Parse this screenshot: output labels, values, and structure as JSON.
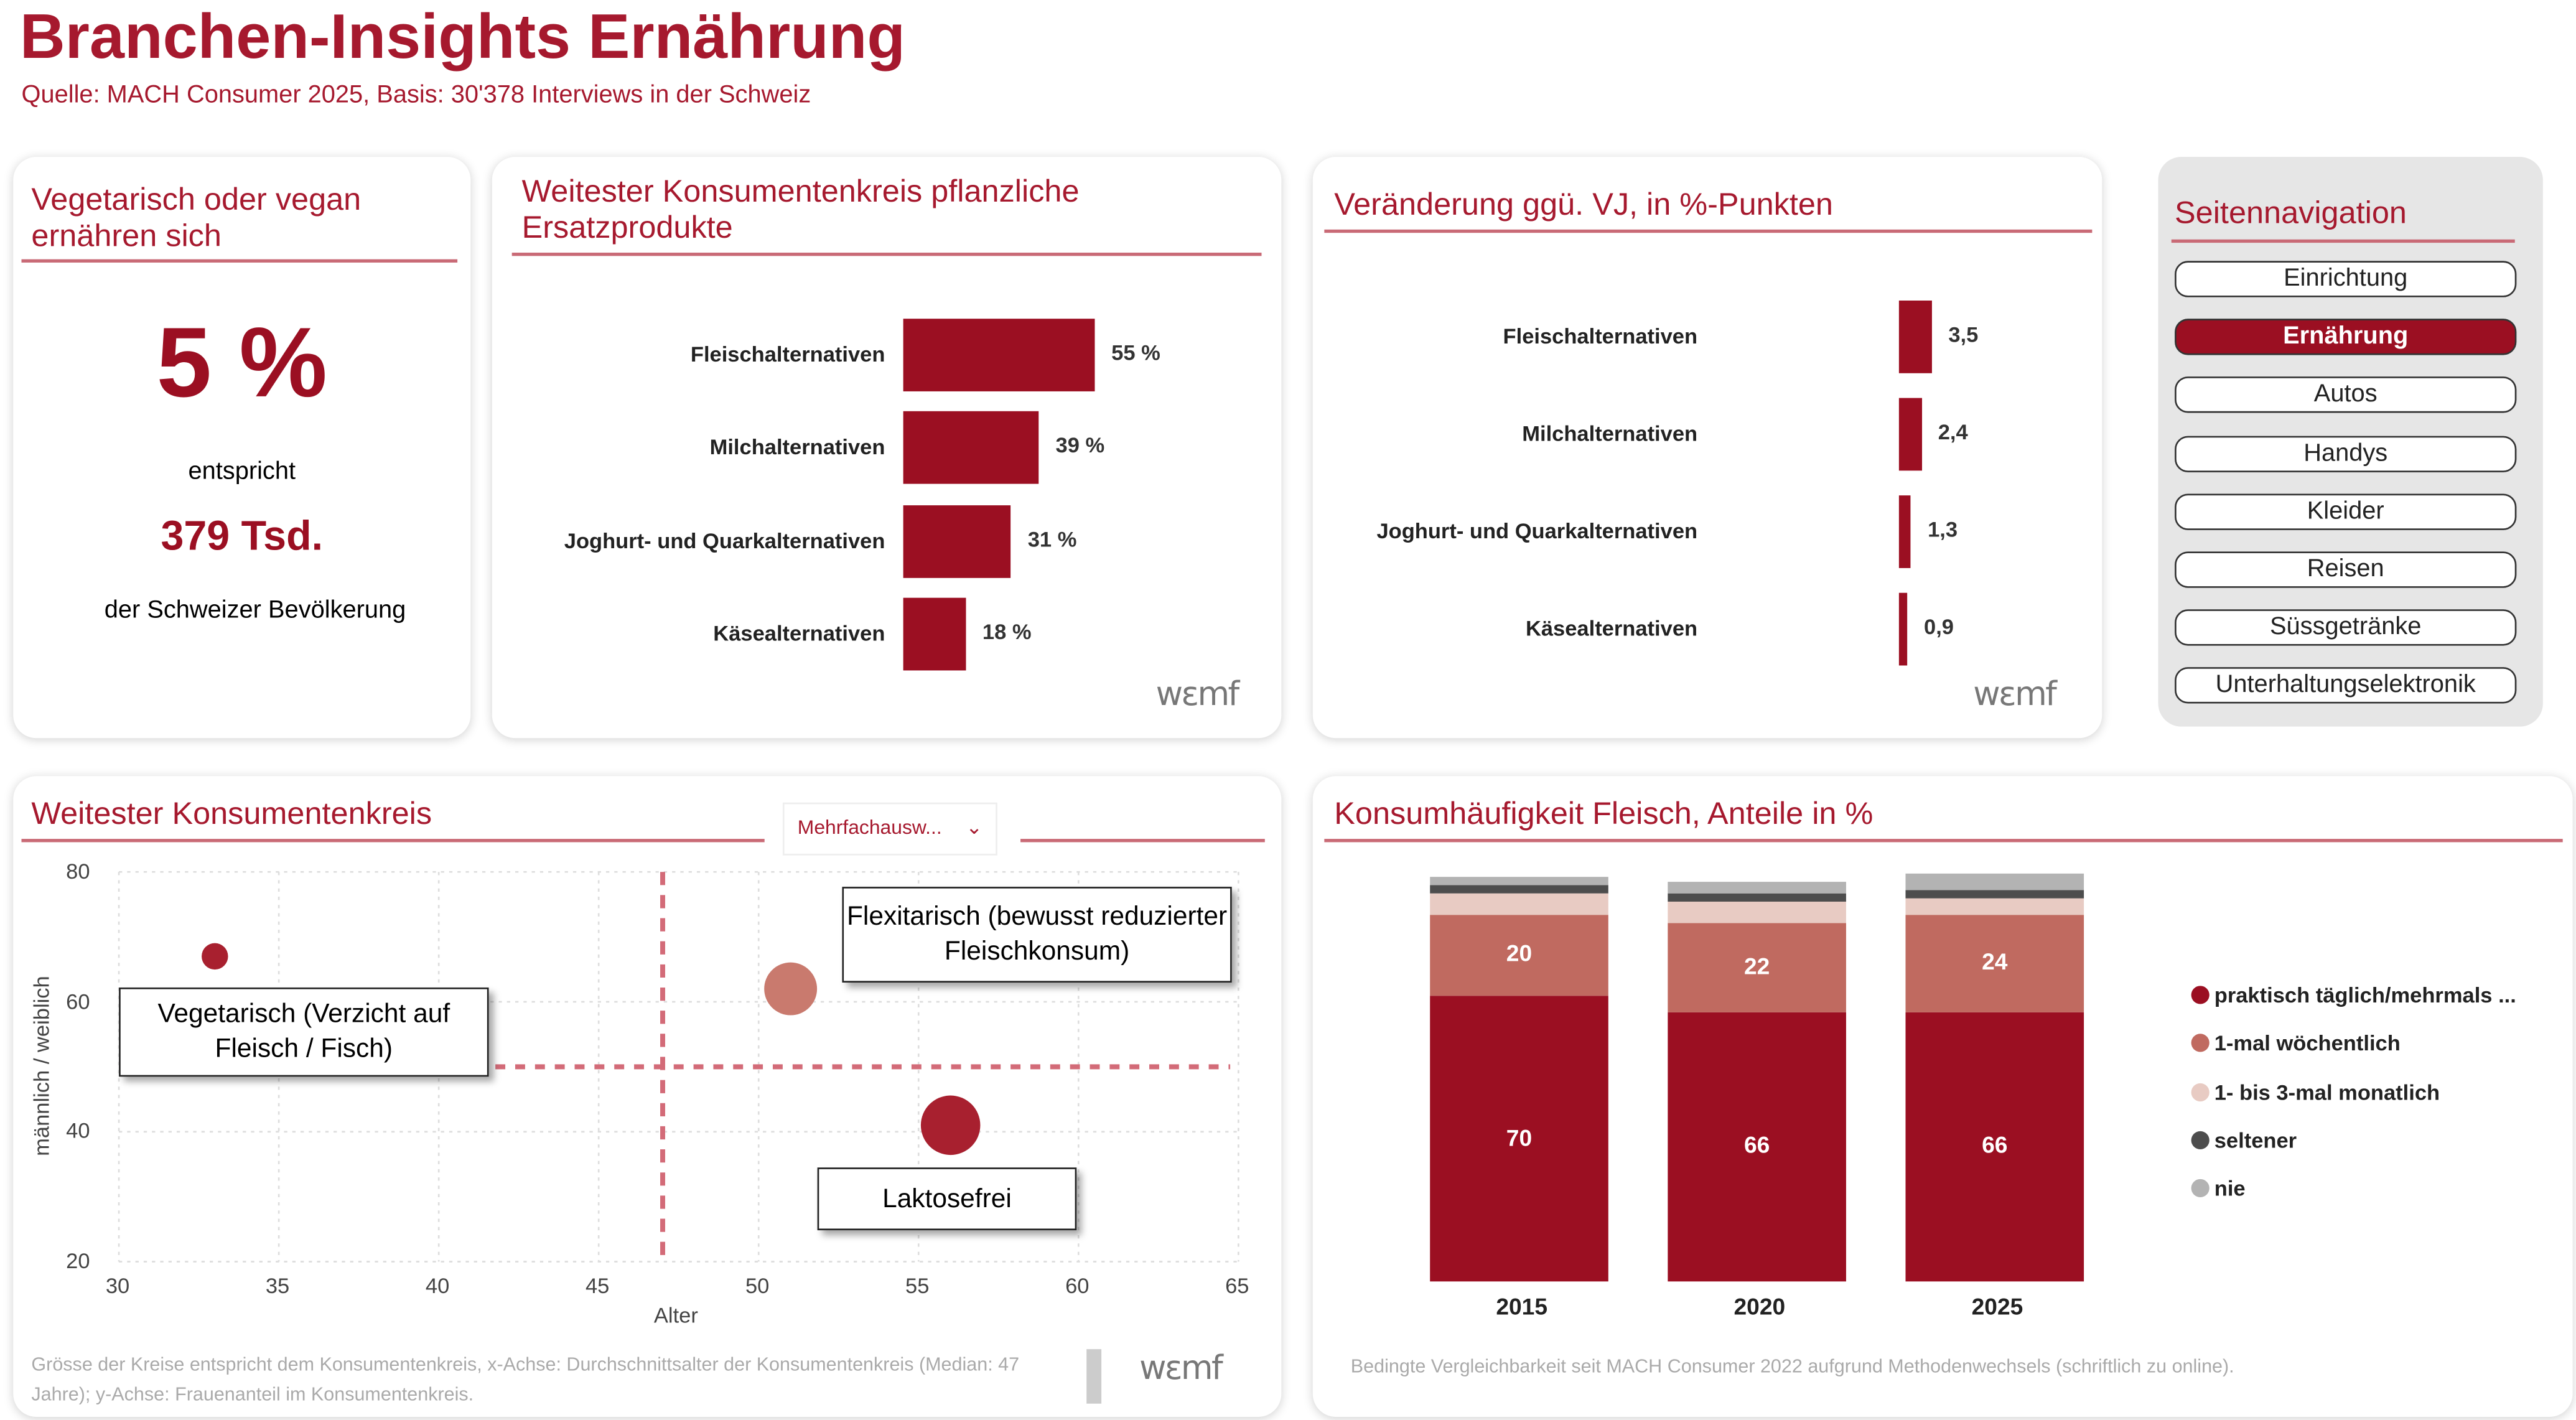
{
  "header": {
    "title": "Branchen-Insights Ernährung",
    "subtitle": "Quelle: MACH Consumer 2025, Basis: 30'378 Interviews in der Schweiz"
  },
  "kpi": {
    "title": "Vegetarisch oder vegan ernähren sich",
    "percent": "5 %",
    "entspricht": "entspricht",
    "count": "379 Tsd.",
    "basis": "der Schweizer Bevölkerung"
  },
  "brand": {
    "logo": "wemf",
    "accent": "#9b0f22"
  },
  "chart_data": [
    {
      "type": "bar",
      "orientation": "horizontal",
      "title": "Weitester Konsumentenkreis pflanzliche Ersatzprodukte",
      "categories": [
        "Fleischalternativen",
        "Milchalternativen",
        "Joghurt- und Quarkalternativen",
        "Käsealternativen"
      ],
      "values": [
        55,
        39,
        31,
        18
      ],
      "labels": [
        "55 %",
        "39 %",
        "31 %",
        "18 %"
      ]
    },
    {
      "type": "bar",
      "orientation": "horizontal",
      "title": "Veränderung ggü. VJ, in %-Punkten",
      "categories": [
        "Fleischalternativen",
        "Milchalternativen",
        "Joghurt- und Quarkalternativen",
        "Käsealternativen"
      ],
      "values": [
        3.5,
        2.4,
        1.3,
        0.9
      ],
      "labels": [
        "3,5",
        "2,4",
        "1,3",
        "0,9"
      ]
    },
    {
      "type": "scatter",
      "title": "Weitester Konsumentenkreis",
      "xlabel": "Alter",
      "ylabel": "männlich / weiblich",
      "xlim": [
        30,
        65
      ],
      "ylim": [
        20,
        80
      ],
      "xticks": [
        "30",
        "35",
        "40",
        "45",
        "50",
        "55",
        "60",
        "65"
      ],
      "yticks": [
        "20",
        "40",
        "60",
        "80"
      ],
      "grid": true,
      "reference_lines": {
        "x": 47,
        "y": 50
      },
      "points": [
        {
          "label": "Vegetarisch (Verzicht auf Fleisch / Fisch)",
          "x": 33,
          "y": 67,
          "size": "small",
          "color": "#a8202f"
        },
        {
          "label": "Flexitarisch (bewusst reduzierter Fleischkonsum)",
          "x": 51,
          "y": 62,
          "size": "medium",
          "color": "#c97a6e"
        },
        {
          "label": "Laktosefrei",
          "x": 56,
          "y": 41,
          "size": "large",
          "color": "#a8202f"
        }
      ],
      "filter": "Mehrfachausw...",
      "note": "Grösse der Kreise entspricht dem Konsumentenkreis, x-Achse: Durchschnittsalter der Konsumentenkreis (Median: 47 Jahre); y-Achse: Frauenanteil im Konsumentenkreis."
    },
    {
      "type": "bar",
      "stacked": true,
      "title": "Konsumhäufigkeit Fleisch, Anteile in %",
      "categories": [
        "2015",
        "2020",
        "2025"
      ],
      "legend_position": "right",
      "series": [
        {
          "name": "praktisch täglich/mehrmals ...",
          "color": "#9b0f22",
          "values": [
            70,
            66,
            66
          ],
          "show_labels": true
        },
        {
          "name": "1-mal wöchentlich",
          "color": "#c06a60",
          "values": [
            20,
            22,
            24
          ],
          "show_labels": true
        },
        {
          "name": "1- bis 3-mal monatlich",
          "color": "#e8cbc3",
          "values": [
            5,
            5,
            4
          ]
        },
        {
          "name": "seltener",
          "color": "#4d4d4d",
          "values": [
            2,
            2,
            2
          ]
        },
        {
          "name": "nie",
          "color": "#b3b3b3",
          "values": [
            2,
            3,
            4
          ]
        }
      ],
      "note": "Bedingte Vergleichbarkeit seit MACH Consumer 2022 aufgrund Methodenwechsels (schriftlich zu online)."
    }
  ],
  "nav": {
    "title": "Seitennavigation",
    "items": [
      {
        "label": "Einrichtung"
      },
      {
        "label": "Ernährung",
        "active": true
      },
      {
        "label": "Autos"
      },
      {
        "label": "Handys"
      },
      {
        "label": "Kleider"
      },
      {
        "label": "Reisen"
      },
      {
        "label": "Süssgetränke"
      },
      {
        "label": "Unterhaltungselektronik"
      }
    ]
  }
}
